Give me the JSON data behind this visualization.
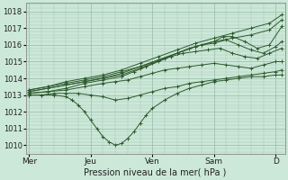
{
  "bg_color": "#cce8d8",
  "grid_color": "#99bbaa",
  "line_color": "#2d5a2d",
  "xlabel": "Pression niveau de la mer( hPa )",
  "ylim": [
    1009.5,
    1018.5
  ],
  "yticks": [
    1010,
    1011,
    1012,
    1013,
    1014,
    1015,
    1016,
    1017,
    1018
  ],
  "xtick_labels": [
    "Mer",
    "Jeu",
    "Ven",
    "Sam",
    "D"
  ],
  "xtick_positions": [
    0.0,
    1.0,
    2.0,
    3.0,
    4.0
  ],
  "lines": [
    {
      "x": [
        0.0,
        0.3,
        0.6,
        0.9,
        1.2,
        1.5,
        1.8,
        2.1,
        2.4,
        2.7,
        3.0,
        3.3,
        3.6,
        3.9,
        4.1
      ],
      "y": [
        1013.3,
        1013.5,
        1013.8,
        1014.0,
        1014.2,
        1014.5,
        1014.9,
        1015.3,
        1015.7,
        1016.1,
        1016.4,
        1016.7,
        1017.0,
        1017.3,
        1017.8
      ]
    },
    {
      "x": [
        0.0,
        0.3,
        0.6,
        0.9,
        1.2,
        1.5,
        1.8,
        2.1,
        2.4,
        2.7,
        3.0,
        3.3,
        3.6,
        3.9,
        4.1
      ],
      "y": [
        1013.3,
        1013.5,
        1013.7,
        1013.9,
        1014.1,
        1014.4,
        1014.7,
        1015.1,
        1015.5,
        1015.9,
        1016.2,
        1016.4,
        1016.6,
        1016.9,
        1017.5
      ]
    },
    {
      "x": [
        0.0,
        0.3,
        0.6,
        0.9,
        1.2,
        1.5,
        1.8,
        2.1,
        2.4,
        2.7,
        3.0,
        3.15,
        3.3,
        3.5,
        3.7,
        3.9,
        4.1
      ],
      "y": [
        1013.2,
        1013.4,
        1013.6,
        1013.8,
        1014.0,
        1014.3,
        1014.7,
        1015.1,
        1015.5,
        1015.9,
        1016.2,
        1016.5,
        1016.5,
        1016.2,
        1015.8,
        1016.0,
        1017.1
      ]
    },
    {
      "x": [
        0.0,
        0.3,
        0.6,
        0.9,
        1.2,
        1.5,
        1.8,
        2.0,
        2.2,
        2.4,
        2.6,
        2.8,
        3.0,
        3.2,
        3.4,
        3.6,
        3.8,
        4.0,
        4.1
      ],
      "y": [
        1013.2,
        1013.4,
        1013.6,
        1013.8,
        1014.0,
        1014.2,
        1014.6,
        1014.9,
        1015.2,
        1015.5,
        1015.8,
        1016.0,
        1016.1,
        1016.3,
        1016.0,
        1015.7,
        1015.5,
        1015.9,
        1016.2
      ]
    },
    {
      "x": [
        0.0,
        0.3,
        0.6,
        0.9,
        1.2,
        1.5,
        1.7,
        1.9,
        2.1,
        2.3,
        2.5,
        2.7,
        2.9,
        3.1,
        3.3,
        3.5,
        3.7,
        3.9,
        4.1
      ],
      "y": [
        1013.1,
        1013.2,
        1013.4,
        1013.7,
        1013.9,
        1014.1,
        1014.4,
        1014.7,
        1015.0,
        1015.3,
        1015.5,
        1015.6,
        1015.7,
        1015.8,
        1015.5,
        1015.3,
        1015.2,
        1015.5,
        1015.8
      ]
    },
    {
      "x": [
        0.0,
        0.3,
        0.6,
        0.9,
        1.2,
        1.4,
        1.6,
        1.8,
        2.0,
        2.2,
        2.4,
        2.6,
        2.8,
        3.0,
        3.2,
        3.4,
        3.6,
        3.8,
        4.0,
        4.1
      ],
      "y": [
        1013.1,
        1013.2,
        1013.3,
        1013.5,
        1013.7,
        1013.8,
        1013.9,
        1014.1,
        1014.3,
        1014.5,
        1014.6,
        1014.7,
        1014.8,
        1014.9,
        1014.8,
        1014.7,
        1014.6,
        1014.8,
        1015.0,
        1015.0
      ]
    },
    {
      "x": [
        0.0,
        0.2,
        0.4,
        0.6,
        0.8,
        1.0,
        1.2,
        1.4,
        1.6,
        1.8,
        2.0,
        2.2,
        2.4,
        2.6,
        2.8,
        3.0,
        3.2,
        3.4,
        3.6,
        3.8,
        4.0,
        4.1
      ],
      "y": [
        1013.0,
        1013.0,
        1013.1,
        1013.1,
        1013.1,
        1013.0,
        1012.9,
        1012.7,
        1012.8,
        1013.0,
        1013.2,
        1013.4,
        1013.5,
        1013.7,
        1013.8,
        1013.9,
        1014.0,
        1014.1,
        1014.2,
        1014.3,
        1014.4,
        1014.5
      ]
    },
    {
      "x": [
        0.0,
        0.2,
        0.4,
        0.6,
        0.7,
        0.8,
        0.9,
        1.0,
        1.1,
        1.2,
        1.3,
        1.4,
        1.5,
        1.6,
        1.7,
        1.8,
        1.9,
        2.0,
        2.2,
        2.4,
        2.6,
        2.8,
        3.0,
        3.2,
        3.4,
        3.6,
        3.8,
        4.0,
        4.1
      ],
      "y": [
        1013.0,
        1013.0,
        1013.0,
        1012.9,
        1012.7,
        1012.4,
        1012.0,
        1011.5,
        1011.0,
        1010.5,
        1010.2,
        1010.0,
        1010.1,
        1010.4,
        1010.8,
        1011.3,
        1011.8,
        1012.2,
        1012.7,
        1013.1,
        1013.4,
        1013.6,
        1013.8,
        1013.9,
        1014.0,
        1014.1,
        1014.1,
        1014.2,
        1014.2
      ]
    }
  ]
}
